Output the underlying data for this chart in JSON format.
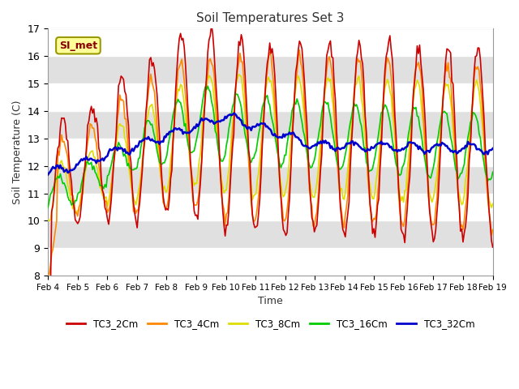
{
  "title": "Soil Temperatures Set 3",
  "xlabel": "Time",
  "ylabel": "Soil Temperature (C)",
  "ylim": [
    8.0,
    17.0
  ],
  "yticks": [
    8.0,
    9.0,
    10.0,
    11.0,
    12.0,
    13.0,
    14.0,
    15.0,
    16.0,
    17.0
  ],
  "date_labels": [
    "Feb 4",
    "Feb 5",
    "Feb 6",
    "Feb 7",
    "Feb 8",
    "Feb 9",
    "Feb 10",
    "Feb 11",
    "Feb 12",
    "Feb 13",
    "Feb 14",
    "Feb 15",
    "Feb 16",
    "Feb 17",
    "Feb 18",
    "Feb 19"
  ],
  "colors": {
    "TC3_2Cm": "#cc0000",
    "TC3_4Cm": "#ff8800",
    "TC3_8Cm": "#dddd00",
    "TC3_16Cm": "#00cc00",
    "TC3_32Cm": "#0000cc"
  },
  "legend_label": "SI_met",
  "band_colors": [
    "#ffffff",
    "#e0e0e0"
  ]
}
